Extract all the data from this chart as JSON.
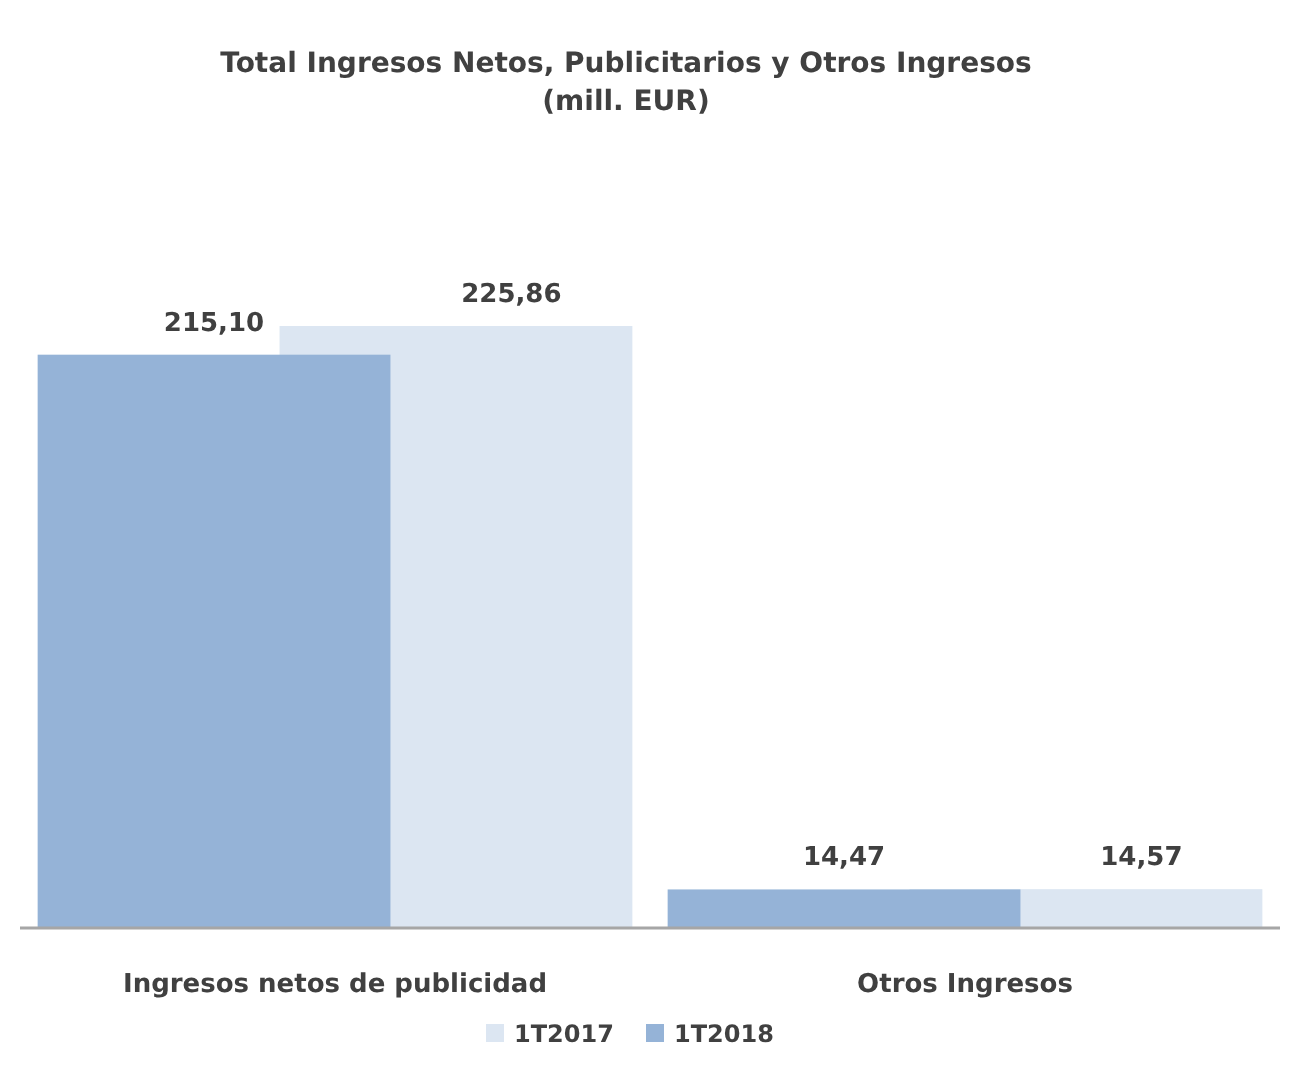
{
  "chart_data": {
    "type": "bar",
    "title": "Total Ingresos Netos, Publicitarios y Otros Ingresos\n(mill. EUR)",
    "categories": [
      "Ingresos netos de publicidad",
      "Otros Ingresos"
    ],
    "legend": "bottom",
    "series": [
      {
        "name": "1T2017",
        "color": "#dce6f2",
        "values": [
          225.86,
          14.57
        ],
        "value_labels": [
          "225,86",
          "14,57"
        ]
      },
      {
        "name": "1T2018",
        "color": "#95b3d7",
        "values": [
          215.1,
          14.47
        ],
        "value_labels": [
          "215,10",
          "14,47"
        ]
      }
    ]
  }
}
